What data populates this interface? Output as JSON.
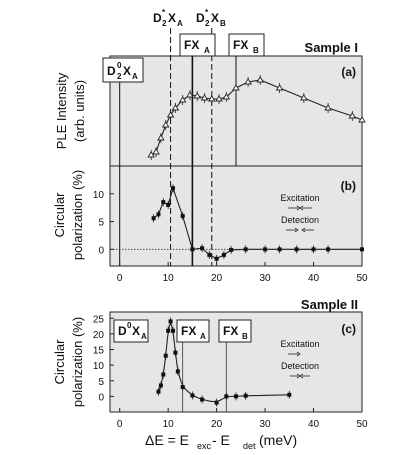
{
  "chart_data": [
    {
      "type": "line",
      "panel_label": "(a)",
      "sample_label": "Sample I",
      "ylabel_line1": "PLE Intensity",
      "ylabel_line2": "(arb. units)",
      "xlim": [
        -2,
        50
      ],
      "marker": "open-triangle",
      "x": [
        6.5,
        7.5,
        8.5,
        9.5,
        10.5,
        11.5,
        13.0,
        14.5,
        16.0,
        17.5,
        19.0,
        20.5,
        22.0,
        24.0,
        26.5,
        29.0,
        33.0,
        38.0,
        43.0,
        48.0,
        50.0
      ],
      "y": [
        0.05,
        0.08,
        0.22,
        0.35,
        0.45,
        0.52,
        0.6,
        0.65,
        0.64,
        0.62,
        0.61,
        0.61,
        0.63,
        0.72,
        0.78,
        0.8,
        0.72,
        0.62,
        0.52,
        0.44,
        0.4
      ],
      "annotations": [
        "D$_2^0$X$_A$",
        "D$_2^*$X$_A$",
        "D$_2^*$X$_B$",
        "FX$_A$",
        "FX$_B$"
      ],
      "labels": {
        "d20xa_base": "D",
        "d20xa_sup": "0",
        "d20xa_sub": "2",
        "d20xa_x": "X",
        "d20xa_xsub": "A",
        "d2sxa_base": "D",
        "d2sxa_sup": "*",
        "d2sxa_sub": "2",
        "d2sxa_x": "X",
        "d2sxa_xsub": "A",
        "d2sxb_base": "D",
        "d2sxb_sup": "*",
        "d2sxb_sub": "2",
        "d2sxb_x": "X",
        "d2sxb_xsub": "B",
        "fxa_base": "FX",
        "fxa_sub": "A",
        "fxb_base": "FX",
        "fxb_sub": "B"
      }
    },
    {
      "type": "line",
      "panel_label": "(b)",
      "ylabel_line1": "Circular",
      "ylabel_line2": "polarization (%)",
      "xlim": [
        -2,
        50
      ],
      "ylim": [
        -3,
        15
      ],
      "yticks": [
        0,
        5,
        10
      ],
      "xticks": [
        0,
        10,
        20,
        30,
        40,
        50
      ],
      "marker": "filled-square",
      "x": [
        7.0,
        8.0,
        9.0,
        10.0,
        11.0,
        13.0,
        15.0,
        17.0,
        18.5,
        20.0,
        21.5,
        23.0,
        26.0,
        30.0,
        33.0,
        36.5,
        40.0,
        43.0,
        50.0
      ],
      "y": [
        5.6,
        6.3,
        8.5,
        8.0,
        11.0,
        6.0,
        0.0,
        0.2,
        -1.0,
        -1.7,
        -1.0,
        -0.1,
        0.0,
        0.0,
        0.0,
        0.0,
        0.0,
        0.0,
        0.0
      ],
      "legend_excitation": "Excitation",
      "legend_detection": "Detection"
    },
    {
      "type": "line",
      "panel_label": "(c)",
      "sample_label": "Sample II",
      "ylabel_line1": "Circular",
      "ylabel_line2": "polarization (%)",
      "xlabel": "ΔE = E$_{exc}$ - E$_{det}$ (meV)",
      "xlim": [
        -2,
        50
      ],
      "ylim": [
        -5,
        27
      ],
      "yticks": [
        0,
        5,
        10,
        15,
        20,
        25
      ],
      "xticks": [
        0,
        10,
        20,
        30,
        40,
        50
      ],
      "marker": "filled-square",
      "x": [
        8.0,
        8.5,
        9.0,
        9.5,
        10.0,
        10.5,
        11.0,
        11.5,
        12.0,
        13.0,
        15.0,
        17.0,
        20.0,
        22.0,
        24.0,
        26.0,
        35.0
      ],
      "y": [
        1.5,
        3.5,
        7.0,
        13.0,
        21.0,
        24.0,
        21.0,
        14.0,
        8.0,
        3.0,
        0.3,
        -1.0,
        -2.0,
        0.0,
        0.0,
        0.2,
        0.5
      ],
      "legend_excitation": "Excitation",
      "legend_detection": "Detection",
      "labels": {
        "d0xa_base": "D",
        "d0xa_sup": "0",
        "d0xa_x": "X",
        "d0xa_xsub": "A",
        "fxa_base": "FX",
        "fxa_sub": "A",
        "fxb_base": "FX",
        "fxb_sub": "B",
        "xlabel_main": "ΔE = E",
        "xlabel_sub1": "exc",
        "xlabel_mid": " - E",
        "xlabel_sub2": "det",
        "xlabel_unit": " (meV)"
      }
    }
  ]
}
